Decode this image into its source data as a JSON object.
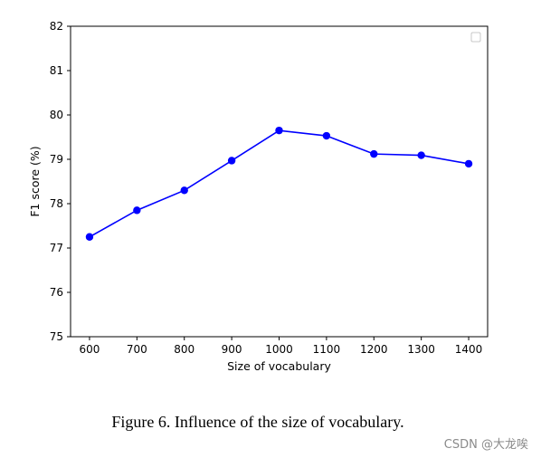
{
  "chart_data": {
    "type": "line",
    "x": [
      600,
      700,
      800,
      900,
      1000,
      1100,
      1200,
      1300,
      1400
    ],
    "series": [
      {
        "values": [
          77.25,
          77.85,
          78.3,
          78.97,
          79.65,
          79.53,
          79.12,
          79.09,
          78.9
        ],
        "color": "#0000ff"
      }
    ],
    "xlabel": "Size of vocabulary",
    "ylabel": "F1 score (%)",
    "xticks": [
      "600",
      "700",
      "800",
      "900",
      "1000",
      "1100",
      "1200",
      "1300",
      "1400"
    ],
    "yticks": [
      "75",
      "76",
      "77",
      "78",
      "79",
      "80",
      "81",
      "82"
    ],
    "xlim": [
      560,
      1440
    ],
    "ylim": [
      75,
      82
    ],
    "grid": false,
    "legend": "top-right, empty"
  },
  "caption": "Figure 6. Influence of the size of vocabulary.",
  "watermark": "CSDN @大龙唉"
}
